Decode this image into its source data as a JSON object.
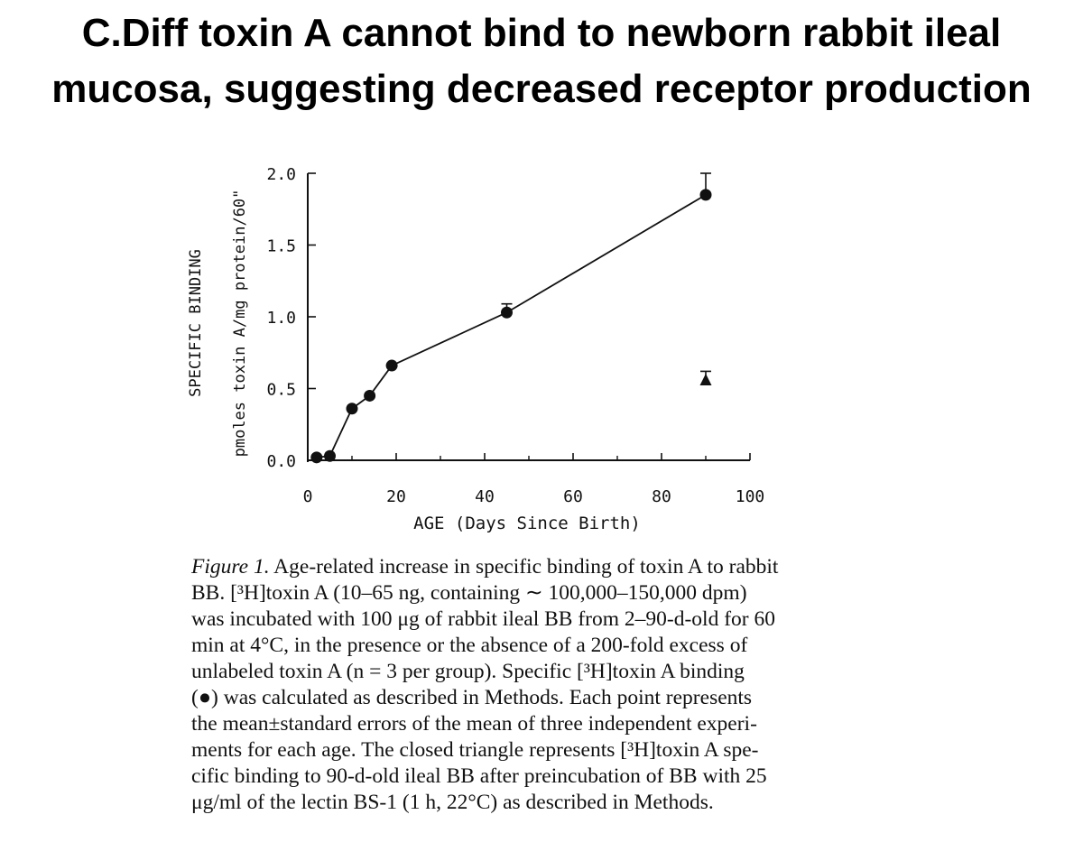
{
  "slide": {
    "title_lines": [
      "C.Diff toxin A cannot bind to newborn rabbit ileal",
      "mucosa, suggesting decreased receptor production"
    ]
  },
  "chart_data": {
    "type": "line",
    "xlabel": "AGE (Days Since Birth)",
    "ylabel_lines": [
      "SPECIFIC BINDING",
      "pmoles toxin A/mg protein/60\""
    ],
    "xlim": [
      0,
      100
    ],
    "ylim": [
      0,
      2.0
    ],
    "x_ticks": [
      0,
      20,
      40,
      60,
      80,
      100
    ],
    "x_tick_labels": [
      "0",
      "20",
      "40",
      "60",
      "80",
      "100"
    ],
    "y_ticks": [
      0,
      0.5,
      1.0,
      1.5,
      2.0
    ],
    "y_tick_labels": [
      "0.0",
      "0.5",
      "1.0",
      "1.5",
      "2.0"
    ],
    "grid": false,
    "series": [
      {
        "marker": "circle",
        "connected": true,
        "x": [
          2,
          5,
          10,
          14,
          19,
          45,
          90
        ],
        "y": [
          0.02,
          0.03,
          0.36,
          0.45,
          0.66,
          1.03,
          1.85
        ],
        "error": [
          0,
          0,
          0,
          0,
          0,
          0.06,
          0.15
        ]
      },
      {
        "marker": "triangle",
        "connected": false,
        "x": [
          90
        ],
        "y": [
          0.56
        ],
        "error": [
          0.06
        ]
      }
    ],
    "colors": {
      "ink": "#111111"
    }
  },
  "caption": {
    "figure_label": "Figure 1.",
    "line1": " Age-related increase in specific binding of toxin A to rabbit",
    "lines": [
      "BB. [³H]toxin A (10–65 ng, containing ∼ 100,000–150,000 dpm)",
      "was incubated with 100 μg of rabbit ileal BB from 2–90-d-old for 60",
      "min at 4°C, in the presence or the absence of a 200-fold excess of",
      "unlabeled toxin A (n = 3 per group). Specific [³H]toxin A binding",
      "(●) was calculated as described in Methods. Each point represents",
      "the mean±standard errors of the mean of three independent experi-",
      "ments for each age. The closed triangle represents [³H]toxin A spe-",
      "cific binding to 90-d-old ileal BB after preincubation of BB with 25",
      "μg/ml of the lectin BS-1 (1 h, 22°C) as described in Methods."
    ]
  }
}
